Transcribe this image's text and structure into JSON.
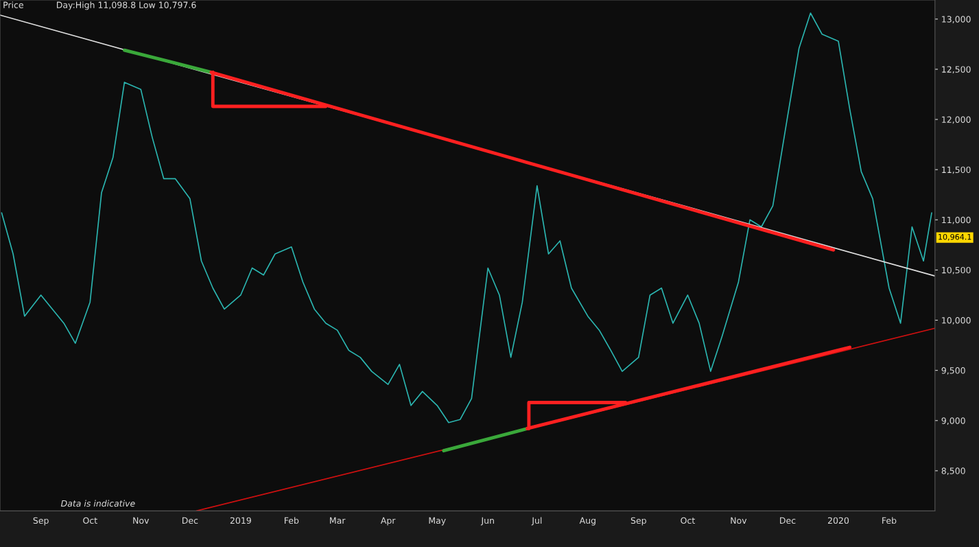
{
  "chart_data": {
    "type": "line",
    "title": "Price",
    "subtitle": "Day:High 11,098.8 Low 10,797.6",
    "annotations": [
      "Data is indicative",
      "10,964.1"
    ],
    "xlim": [
      "2018-08-07",
      "2020-02-29"
    ],
    "ylim": [
      8100,
      13190
    ],
    "xticks": [
      {
        "value": "2018-09-01",
        "label": "Sep"
      },
      {
        "value": "2018-10-01",
        "label": "Oct"
      },
      {
        "value": "2018-11-01",
        "label": "Nov"
      },
      {
        "value": "2018-12-01",
        "label": "Dec"
      },
      {
        "value": "2019-01-01",
        "label": "2019"
      },
      {
        "value": "2019-02-01",
        "label": "Feb"
      },
      {
        "value": "2019-03-01",
        "label": "Mar"
      },
      {
        "value": "2019-04-01",
        "label": "Apr"
      },
      {
        "value": "2019-05-01",
        "label": "May"
      },
      {
        "value": "2019-06-01",
        "label": "Jun"
      },
      {
        "value": "2019-07-01",
        "label": "Jul"
      },
      {
        "value": "2019-08-01",
        "label": "Aug"
      },
      {
        "value": "2019-09-01",
        "label": "Sep"
      },
      {
        "value": "2019-10-01",
        "label": "Oct"
      },
      {
        "value": "2019-11-01",
        "label": "Nov"
      },
      {
        "value": "2019-12-01",
        "label": "Dec"
      },
      {
        "value": "2020-01-01",
        "label": "2020"
      },
      {
        "value": "2020-02-01",
        "label": "Feb"
      }
    ],
    "yticks": [
      {
        "value": 8500,
        "label": "8,500"
      },
      {
        "value": 9000,
        "label": "9,000"
      },
      {
        "value": 9500,
        "label": "9,500"
      },
      {
        "value": 10000,
        "label": "10,000"
      },
      {
        "value": 10500,
        "label": "10,500"
      },
      {
        "value": 11000,
        "label": "11,000"
      },
      {
        "value": 11500,
        "label": "11,500"
      },
      {
        "value": 12000,
        "label": "12,000"
      },
      {
        "value": 12500,
        "label": "12,500"
      },
      {
        "value": 13000,
        "label": "13,000"
      }
    ],
    "grid": false,
    "legend": false,
    "series": [
      {
        "color": "#2bb5b0",
        "x": [
          "2018-08-08",
          "2018-08-15",
          "2018-08-22",
          "2018-09-01",
          "2018-09-08",
          "2018-09-15",
          "2018-09-22",
          "2018-10-01",
          "2018-10-08",
          "2018-10-15",
          "2018-10-22",
          "2018-11-01",
          "2018-11-08",
          "2018-11-15",
          "2018-11-22",
          "2018-12-01",
          "2018-12-08",
          "2018-12-15",
          "2018-12-22",
          "2019-01-01",
          "2019-01-08",
          "2019-01-15",
          "2019-01-22",
          "2019-02-01",
          "2019-02-08",
          "2019-02-15",
          "2019-02-22",
          "2019-03-01",
          "2019-03-08",
          "2019-03-15",
          "2019-03-22",
          "2019-04-01",
          "2019-04-08",
          "2019-04-15",
          "2019-04-22",
          "2019-05-01",
          "2019-05-08",
          "2019-05-15",
          "2019-05-22",
          "2019-06-01",
          "2019-06-08",
          "2019-06-15",
          "2019-06-22",
          "2019-07-01",
          "2019-07-08",
          "2019-07-15",
          "2019-07-22",
          "2019-08-01",
          "2019-08-08",
          "2019-08-15",
          "2019-08-22",
          "2019-09-01",
          "2019-09-08",
          "2019-09-15",
          "2019-09-22",
          "2019-10-01",
          "2019-10-08",
          "2019-10-15",
          "2019-10-22",
          "2019-11-01",
          "2019-11-08",
          "2019-11-15",
          "2019-11-22",
          "2019-12-01",
          "2019-12-08",
          "2019-12-15",
          "2019-12-22",
          "2020-01-01",
          "2020-01-08",
          "2020-01-15",
          "2020-01-22",
          "2020-02-01",
          "2020-02-08",
          "2020-02-15",
          "2020-02-22",
          "2020-02-27"
        ],
        "values": [
          11070,
          10660,
          10040,
          10250,
          10110,
          9970,
          9770,
          10180,
          11270,
          11620,
          12370,
          12300,
          11820,
          11410,
          11410,
          11210,
          10590,
          10320,
          10110,
          10250,
          10520,
          10450,
          10660,
          10730,
          10380,
          10110,
          9970,
          9900,
          9700,
          9630,
          9490,
          9360,
          9560,
          9150,
          9290,
          9150,
          8980,
          9010,
          9220,
          10520,
          10250,
          9630,
          10180,
          11340,
          10660,
          10790,
          10320,
          10040,
          9900,
          9700,
          9490,
          9630,
          10250,
          10320,
          9970,
          10250,
          9970,
          9490,
          9840,
          10380,
          11000,
          10930,
          11140,
          12030,
          12710,
          13060,
          12850,
          12780,
          12100,
          11480,
          11210,
          10320,
          9970,
          10930,
          10590,
          11070
        ]
      },
      {
        "type": "line",
        "color": "#e0e0e0",
        "x": [
          "2018-08-07",
          "2020-02-29"
        ],
        "values": [
          13040,
          10440
        ]
      },
      {
        "type": "line",
        "color": "#d01010",
        "x": [
          "2018-12-05",
          "2020-02-29"
        ],
        "values": [
          8100,
          9920
        ]
      },
      {
        "type": "line",
        "color": "#3aa83a",
        "x": [
          "2018-10-22",
          "2018-12-14"
        ],
        "values": [
          12690,
          12470
        ]
      },
      {
        "type": "line",
        "color": "#ff2020",
        "x": [
          "2018-12-14",
          "2019-12-29"
        ],
        "values": [
          12470,
          10700
        ]
      },
      {
        "type": "line",
        "color": "#ff2020",
        "x": [
          "2018-12-15",
          "2018-12-15",
          "2019-02-22"
        ],
        "values": [
          12470,
          12130,
          12130
        ]
      },
      {
        "type": "line",
        "color": "#3aa83a",
        "x": [
          "2019-05-05",
          "2019-06-25"
        ],
        "values": [
          8700,
          8920
        ]
      },
      {
        "type": "line",
        "color": "#ff2020",
        "x": [
          "2019-06-25",
          "2020-01-08"
        ],
        "values": [
          8920,
          9730
        ]
      },
      {
        "type": "line",
        "color": "#ff2020",
        "x": [
          "2019-06-26",
          "2019-06-26",
          "2019-08-24"
        ],
        "values": [
          8920,
          9180,
          9180
        ]
      }
    ]
  }
}
